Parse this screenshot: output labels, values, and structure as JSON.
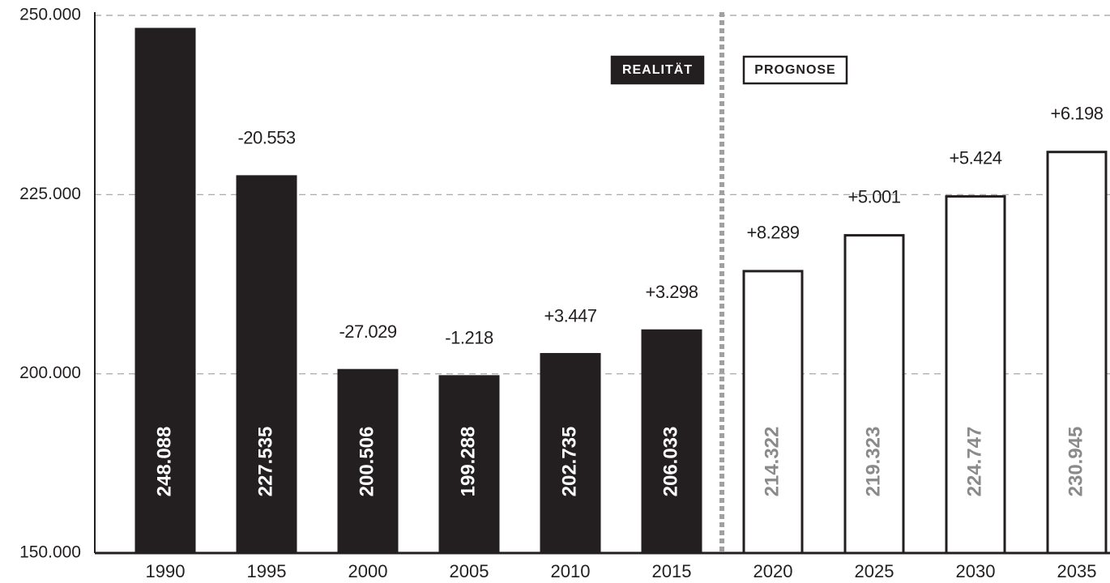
{
  "chart_data": {
    "type": "bar",
    "categories": [
      "1990",
      "1995",
      "2000",
      "2005",
      "2010",
      "2015",
      "2020",
      "2025",
      "2030",
      "2035"
    ],
    "series": [
      {
        "name": "REALITÄT",
        "color": "#231f20",
        "label_color": "#ffffff",
        "values": [
          248088,
          227535,
          200506,
          199288,
          202735,
          206033,
          null,
          null,
          null,
          null
        ],
        "value_labels": [
          "248.088",
          "227.535",
          "200.506",
          "199.288",
          "202.735",
          "206.033",
          null,
          null,
          null,
          null
        ],
        "changes": [
          null,
          -20553,
          -27029,
          -1218,
          3447,
          3298,
          null,
          null,
          null,
          null
        ],
        "change_labels": [
          null,
          "-20.553",
          "-27.029",
          "-1.218",
          "+3.447",
          "+3.298",
          null,
          null,
          null,
          null
        ]
      },
      {
        "name": "PROGNOSE",
        "color": "#ffffff",
        "label_color": "#8a8a8a",
        "values": [
          null,
          null,
          null,
          null,
          null,
          null,
          214322,
          219323,
          224747,
          230945
        ],
        "value_labels": [
          null,
          null,
          null,
          null,
          null,
          null,
          "214.322",
          "219.323",
          "224.747",
          "230.945"
        ],
        "changes": [
          null,
          null,
          null,
          null,
          null,
          null,
          8289,
          5001,
          5424,
          6198
        ],
        "change_labels": [
          null,
          null,
          null,
          null,
          null,
          null,
          "+8.289",
          "+5.001",
          "+5.424",
          "+6.198"
        ]
      }
    ],
    "ylim": [
      150000,
      250000
    ],
    "yticks": [
      {
        "value": 150000,
        "label": "150.000"
      },
      {
        "value": 200000,
        "label": "200.000"
      },
      {
        "value": 225000,
        "label": "225.000"
      },
      {
        "value": 250000,
        "label": "250.000"
      }
    ],
    "grid": true
  }
}
